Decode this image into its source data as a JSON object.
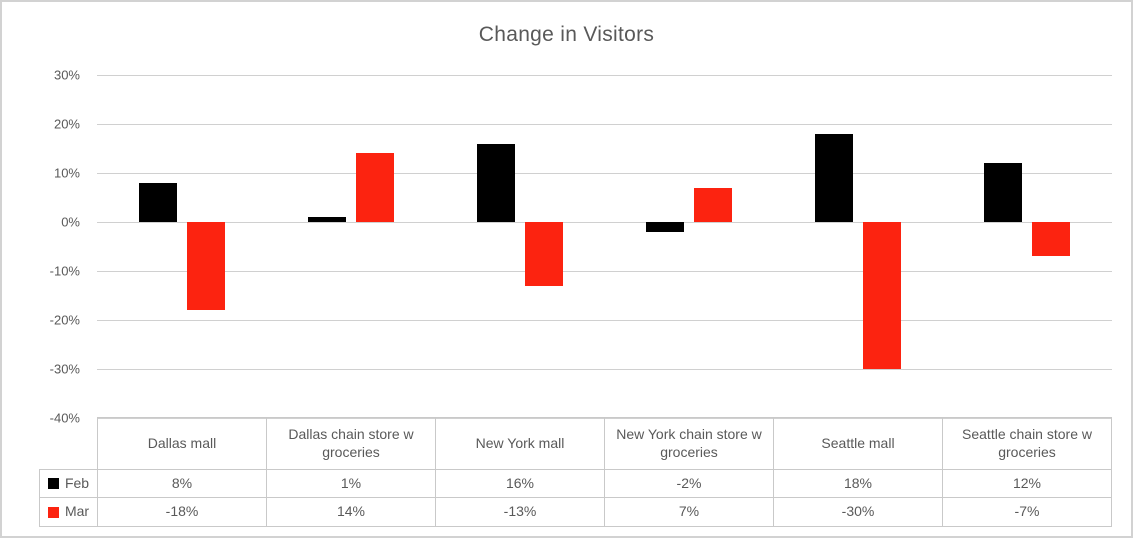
{
  "title": "Change in Visitors",
  "chart_data": {
    "type": "bar",
    "title": "Change in Visitors",
    "categories": [
      "Dallas mall",
      "Dallas chain store w groceries",
      "New York mall",
      "New York chain store w groceries",
      "Seattle mall",
      "Seattle chain store w groceries"
    ],
    "series": [
      {
        "name": "Feb",
        "color": "#000000",
        "values": [
          8,
          1,
          16,
          -2,
          18,
          12
        ]
      },
      {
        "name": "Mar",
        "color": "#fc2310",
        "values": [
          -18,
          14,
          -13,
          7,
          -30,
          -7
        ]
      }
    ],
    "ylim": [
      -40,
      30
    ],
    "ytick_step": 10,
    "ytick_labels": [
      "30%",
      "20%",
      "10%",
      "0%",
      "-10%",
      "-20%",
      "-30%",
      "-40%"
    ],
    "grid": true,
    "legend_position": "data-table-row-headers",
    "value_suffix": "%"
  },
  "table": {
    "rows": [
      {
        "label": "Feb",
        "marker_color": "#000000",
        "values": [
          "8%",
          "1%",
          "16%",
          "-2%",
          "18%",
          "12%"
        ]
      },
      {
        "label": "Mar",
        "marker_color": "#fc2310",
        "values": [
          "-18%",
          "14%",
          "-13%",
          "7%",
          "-30%",
          "-7%"
        ]
      }
    ]
  },
  "colors": {
    "feb_series": "#000000",
    "mar_series": "#fc2310",
    "gridline": "#d0d0d0",
    "text": "#595959",
    "table_border": "#c9c9c9"
  }
}
